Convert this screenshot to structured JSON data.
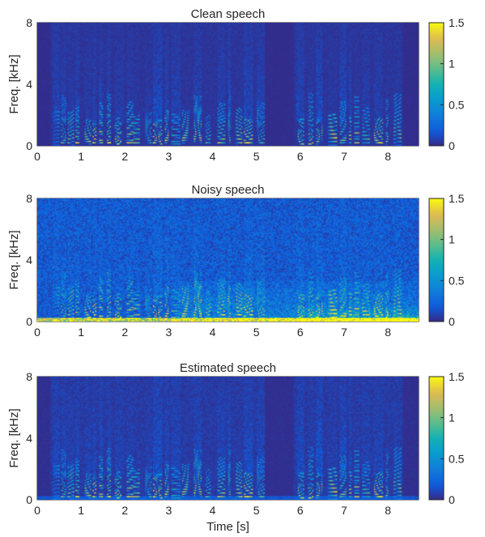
{
  "chart_data": [
    {
      "type": "heatmap",
      "title": "Clean speech",
      "xlabel": "",
      "ylabel": "Freq. [kHz]",
      "xlim": [
        0,
        8.7
      ],
      "ylim": [
        0,
        8
      ],
      "x_ticks": [
        0,
        1,
        2,
        3,
        4,
        5,
        6,
        7,
        8
      ],
      "y_ticks": [
        0,
        4,
        8
      ],
      "colorbar": {
        "ticks": [
          0,
          0.5,
          1,
          1.5
        ],
        "tick_labels": [
          "0",
          "0.5",
          "1",
          "1.5"
        ],
        "range": [
          0,
          1.5
        ],
        "colormap": "parula"
      },
      "noise_floor": 0.04,
      "low_band_noise": 0.0,
      "high_noise_region": null,
      "speech_segments": [
        [
          0.35,
          1.5
        ],
        [
          1.6,
          3.0
        ],
        [
          3.05,
          4.0
        ],
        [
          4.1,
          5.2
        ],
        [
          5.9,
          7.05
        ],
        [
          7.1,
          8.3
        ]
      ],
      "silence": [
        [
          0,
          0.3
        ],
        [
          5.2,
          5.85
        ],
        [
          8.35,
          8.7
        ]
      ],
      "strong_bands": [
        [
          7.05,
          7.4
        ],
        [
          7.8,
          8.15
        ]
      ]
    },
    {
      "type": "heatmap",
      "title": "Noisy speech",
      "xlabel": "",
      "ylabel": "Freq. [kHz]",
      "xlim": [
        0,
        8.7
      ],
      "ylim": [
        0,
        8
      ],
      "x_ticks": [
        0,
        1,
        2,
        3,
        4,
        5,
        6,
        7,
        8
      ],
      "y_ticks": [
        0,
        4,
        8
      ],
      "colorbar": {
        "ticks": [
          0,
          0.5,
          1,
          1.5
        ],
        "tick_labels": [
          "0",
          "0.5",
          "1",
          "1.5"
        ],
        "range": [
          0,
          1.5
        ],
        "colormap": "parula"
      },
      "noise_floor": 0.18,
      "low_band_noise": 1.2,
      "high_noise_region": [
        3.0,
        8.7
      ],
      "speech_segments": [
        [
          0.35,
          1.5
        ],
        [
          1.6,
          3.0
        ],
        [
          3.05,
          4.0
        ],
        [
          4.1,
          5.2
        ],
        [
          5.9,
          7.05
        ],
        [
          7.1,
          8.3
        ]
      ],
      "silence": [],
      "strong_bands": [
        [
          7.05,
          7.4
        ],
        [
          7.8,
          8.15
        ]
      ]
    },
    {
      "type": "heatmap",
      "title": "Estimated speech",
      "xlabel": "Time [s]",
      "ylabel": "Freq. [kHz]",
      "xlim": [
        0,
        8.7
      ],
      "ylim": [
        0,
        8
      ],
      "x_ticks": [
        0,
        1,
        2,
        3,
        4,
        5,
        6,
        7,
        8
      ],
      "y_ticks": [
        0,
        4,
        8
      ],
      "colorbar": {
        "ticks": [
          0,
          0.5,
          1,
          1.5
        ],
        "tick_labels": [
          "0",
          "0.5",
          "1",
          "1.5"
        ],
        "range": [
          0,
          1.5
        ],
        "colormap": "parula"
      },
      "noise_floor": 0.06,
      "low_band_noise": 0.15,
      "high_noise_region": null,
      "speech_segments": [
        [
          0.35,
          1.5
        ],
        [
          1.6,
          3.0
        ],
        [
          3.05,
          4.0
        ],
        [
          4.1,
          5.2
        ],
        [
          5.9,
          7.05
        ],
        [
          7.1,
          8.3
        ]
      ],
      "silence": [
        [
          0,
          0.3
        ],
        [
          5.2,
          5.85
        ],
        [
          8.35,
          8.7
        ]
      ],
      "strong_bands": [
        [
          7.05,
          7.4
        ],
        [
          7.8,
          8.15
        ]
      ]
    }
  ]
}
